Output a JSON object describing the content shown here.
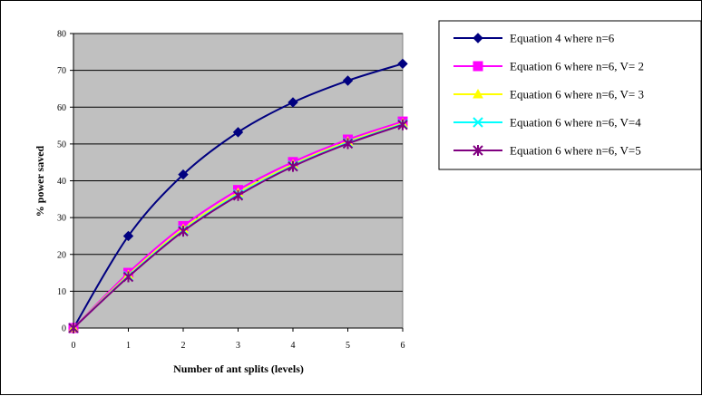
{
  "chart_data": {
    "type": "line",
    "title": "",
    "xlabel": "Number of ant splits (levels)",
    "ylabel": "% power saved",
    "x": [
      0,
      1,
      2,
      3,
      4,
      5,
      6
    ],
    "xlim": [
      0,
      6
    ],
    "ylim": [
      0,
      80
    ],
    "yticks": [
      0,
      10,
      20,
      30,
      40,
      50,
      60,
      70,
      80
    ],
    "grid": "horizontal",
    "plot_background": "#c0c0c0",
    "legend_position": "right",
    "series": [
      {
        "name": "Equation 4 where n=6",
        "values": [
          0,
          25,
          41.7,
          53.2,
          61.3,
          67.2,
          71.8
        ],
        "color": "#000080",
        "marker": "diamond"
      },
      {
        "name": "Equation 6 where n=6, V= 2",
        "values": [
          0,
          15,
          27.7,
          37.5,
          45.1,
          51.2,
          56.1
        ],
        "color": "#ff00ff",
        "marker": "square"
      },
      {
        "name": "Equation 6 where n=6, V= 3",
        "values": [
          0,
          14.4,
          26.9,
          36.7,
          44.4,
          50.6,
          55.6
        ],
        "color": "#ffff00",
        "marker": "triangle"
      },
      {
        "name": "Equation 6 where n=6, V=4",
        "values": [
          0,
          14.1,
          26.5,
          36.3,
          44.1,
          50.3,
          55.4
        ],
        "color": "#00ffff",
        "marker": "x"
      },
      {
        "name": "Equation 6 where n=6, V=5",
        "values": [
          0,
          13.9,
          26.3,
          36.0,
          43.9,
          50.1,
          55.2
        ],
        "color": "#800080",
        "marker": "star"
      }
    ]
  }
}
